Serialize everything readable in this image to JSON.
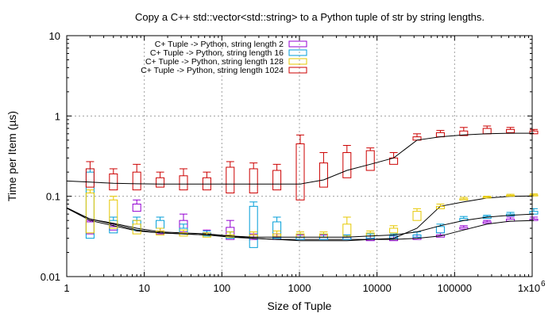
{
  "chart_data": {
    "type": "candlestick",
    "title": "Copy a C++ std::vector<std::string> to a Python tuple of str by string lengths.",
    "xlabel": "Size of Tuple",
    "ylabel": "Time per Item (µs)",
    "x_scale": "log",
    "y_scale": "log",
    "xlim": [
      1,
      1000000
    ],
    "ylim": [
      0.01,
      10
    ],
    "grid": true,
    "legend_position": "top-left",
    "x_ticks": [
      {
        "value": 1,
        "label": "1"
      },
      {
        "value": 10,
        "label": "10"
      },
      {
        "value": 100,
        "label": "100"
      },
      {
        "value": 1000,
        "label": "1000"
      },
      {
        "value": 10000,
        "label": "10000"
      },
      {
        "value": 100000,
        "label": "100000"
      },
      {
        "value": 1000000,
        "label": "1x10"
      }
    ],
    "x_tick_last_exponent": "6",
    "y_ticks": [
      {
        "value": 0.01,
        "label": "0.01"
      },
      {
        "value": 0.1,
        "label": "0.1"
      },
      {
        "value": 1,
        "label": "1"
      },
      {
        "value": 10,
        "label": "10"
      }
    ],
    "series": [
      {
        "name": "C+ Tuple -> Python, string length 2",
        "color": "#9400d3",
        "box_x": [
          2,
          4,
          8,
          16,
          32,
          64,
          128,
          256,
          512,
          1024,
          2048,
          4096,
          8192,
          16384,
          32768,
          65536,
          131072,
          262144,
          524288,
          1048576
        ],
        "box_low": [
          0.034,
          0.038,
          0.065,
          0.034,
          0.036,
          0.033,
          0.029,
          0.029,
          0.029,
          0.029,
          0.029,
          0.029,
          0.028,
          0.028,
          0.029,
          0.031,
          0.039,
          0.046,
          0.049,
          0.05
        ],
        "box_high": [
          0.048,
          0.042,
          0.08,
          0.037,
          0.05,
          0.035,
          0.041,
          0.031,
          0.031,
          0.031,
          0.031,
          0.031,
          0.03,
          0.03,
          0.031,
          0.033,
          0.041,
          0.048,
          0.052,
          0.052
        ],
        "whisker_high": [
          0.05,
          0.045,
          0.09,
          0.04,
          0.06,
          0.038,
          0.05,
          0.034,
          0.034,
          0.033,
          0.033,
          0.033,
          0.032,
          0.032,
          0.033,
          0.035,
          0.043,
          0.05,
          0.055,
          0.055
        ],
        "line_x": [
          1,
          2,
          4,
          8,
          16,
          32,
          64,
          128,
          256,
          512,
          1024,
          2048,
          4096,
          8192,
          16384,
          32768,
          65536,
          131072,
          262144,
          524288,
          1048576
        ],
        "line_y": [
          0.071,
          0.05,
          0.043,
          0.037,
          0.035,
          0.034,
          0.033,
          0.031,
          0.03,
          0.029,
          0.029,
          0.029,
          0.029,
          0.029,
          0.029,
          0.03,
          0.032,
          0.038,
          0.045,
          0.049,
          0.05
        ]
      },
      {
        "name": "C+ Tuple -> Python, string length 16",
        "color": "#009ed8",
        "box_x": [
          2,
          4,
          8,
          16,
          32,
          64,
          128,
          256,
          512,
          1024,
          2048,
          4096,
          8192,
          16384,
          32768,
          65536,
          131072,
          262144,
          524288,
          1048576
        ],
        "box_low": [
          0.03,
          0.035,
          0.038,
          0.04,
          0.034,
          0.032,
          0.03,
          0.023,
          0.03,
          0.029,
          0.029,
          0.029,
          0.03,
          0.03,
          0.031,
          0.035,
          0.05,
          0.053,
          0.057,
          0.06
        ],
        "box_high": [
          0.2,
          0.05,
          0.05,
          0.05,
          0.04,
          0.035,
          0.033,
          0.075,
          0.048,
          0.031,
          0.031,
          0.031,
          0.032,
          0.032,
          0.033,
          0.042,
          0.053,
          0.056,
          0.06,
          0.065
        ],
        "whisker_high": [
          0.22,
          0.055,
          0.055,
          0.055,
          0.045,
          0.037,
          0.036,
          0.085,
          0.055,
          0.034,
          0.034,
          0.033,
          0.034,
          0.034,
          0.036,
          0.045,
          0.056,
          0.058,
          0.063,
          0.07
        ],
        "line_x": [
          1,
          2,
          4,
          8,
          16,
          32,
          64,
          128,
          256,
          512,
          1024,
          2048,
          4096,
          8192,
          16384,
          32768,
          65536,
          131072,
          262144,
          524288,
          1048576
        ],
        "line_y": [
          0.071,
          0.052,
          0.046,
          0.04,
          0.036,
          0.035,
          0.034,
          0.032,
          0.03,
          0.029,
          0.028,
          0.028,
          0.028,
          0.029,
          0.03,
          0.04,
          0.075,
          0.085,
          0.095,
          0.1,
          0.101
        ]
      },
      {
        "name": "C+ Tuple -> Python, string length 128",
        "color": "#e6c800",
        "box_x": [
          2,
          4,
          8,
          16,
          32,
          64,
          128,
          256,
          512,
          1024,
          2048,
          4096,
          8192,
          16384,
          32768,
          65536,
          131072,
          262144,
          524288,
          1048576
        ],
        "box_low": [
          0.035,
          0.04,
          0.034,
          0.033,
          0.032,
          0.031,
          0.031,
          0.031,
          0.032,
          0.031,
          0.031,
          0.032,
          0.032,
          0.035,
          0.05,
          0.07,
          0.09,
          0.095,
          0.1,
          0.101
        ],
        "box_high": [
          0.11,
          0.09,
          0.045,
          0.037,
          0.035,
          0.033,
          0.033,
          0.033,
          0.034,
          0.034,
          0.034,
          0.045,
          0.035,
          0.04,
          0.065,
          0.075,
          0.093,
          0.098,
          0.103,
          0.104
        ],
        "whisker_high": [
          0.12,
          0.1,
          0.05,
          0.04,
          0.038,
          0.035,
          0.036,
          0.036,
          0.037,
          0.036,
          0.036,
          0.055,
          0.037,
          0.043,
          0.07,
          0.08,
          0.097,
          0.1,
          0.106,
          0.107
        ],
        "line_x": [
          1,
          2,
          4,
          8,
          16,
          32,
          64,
          128,
          256,
          512,
          1024,
          2048,
          4096,
          8192,
          16384,
          32768,
          65536,
          131072,
          262144,
          524288,
          1048576
        ],
        "line_y": [
          0.072,
          0.052,
          0.045,
          0.038,
          0.035,
          0.034,
          0.033,
          0.032,
          0.031,
          0.031,
          0.031,
          0.031,
          0.031,
          0.032,
          0.033,
          0.036,
          0.043,
          0.05,
          0.055,
          0.058,
          0.06
        ]
      },
      {
        "name": "C+ Tuple -> Python, string length 1024",
        "color": "#cc0000",
        "box_x": [
          2,
          4,
          8,
          16,
          32,
          64,
          128,
          256,
          512,
          1024,
          2048,
          4096,
          8192,
          16384,
          32768,
          65536,
          131072,
          262144,
          524288,
          1048576
        ],
        "box_low": [
          0.13,
          0.12,
          0.12,
          0.13,
          0.12,
          0.12,
          0.11,
          0.11,
          0.12,
          0.09,
          0.13,
          0.17,
          0.21,
          0.25,
          0.5,
          0.55,
          0.57,
          0.6,
          0.62,
          0.6
        ],
        "box_high": [
          0.22,
          0.19,
          0.2,
          0.17,
          0.18,
          0.17,
          0.23,
          0.22,
          0.21,
          0.45,
          0.26,
          0.35,
          0.37,
          0.3,
          0.55,
          0.62,
          0.65,
          0.7,
          0.68,
          0.65
        ],
        "whisker_high": [
          0.27,
          0.22,
          0.25,
          0.2,
          0.22,
          0.2,
          0.27,
          0.26,
          0.25,
          0.58,
          0.35,
          0.43,
          0.4,
          0.35,
          0.6,
          0.66,
          0.72,
          0.75,
          0.72,
          0.68
        ],
        "line_x": [
          1,
          2,
          4,
          8,
          16,
          32,
          64,
          128,
          256,
          512,
          1024,
          2048,
          4096,
          8192,
          16384,
          32768,
          65536,
          131072,
          262144,
          524288,
          1048576
        ],
        "line_y": [
          0.155,
          0.15,
          0.145,
          0.143,
          0.142,
          0.142,
          0.142,
          0.142,
          0.142,
          0.142,
          0.142,
          0.16,
          0.21,
          0.25,
          0.3,
          0.5,
          0.55,
          0.58,
          0.6,
          0.61,
          0.61
        ]
      }
    ]
  }
}
